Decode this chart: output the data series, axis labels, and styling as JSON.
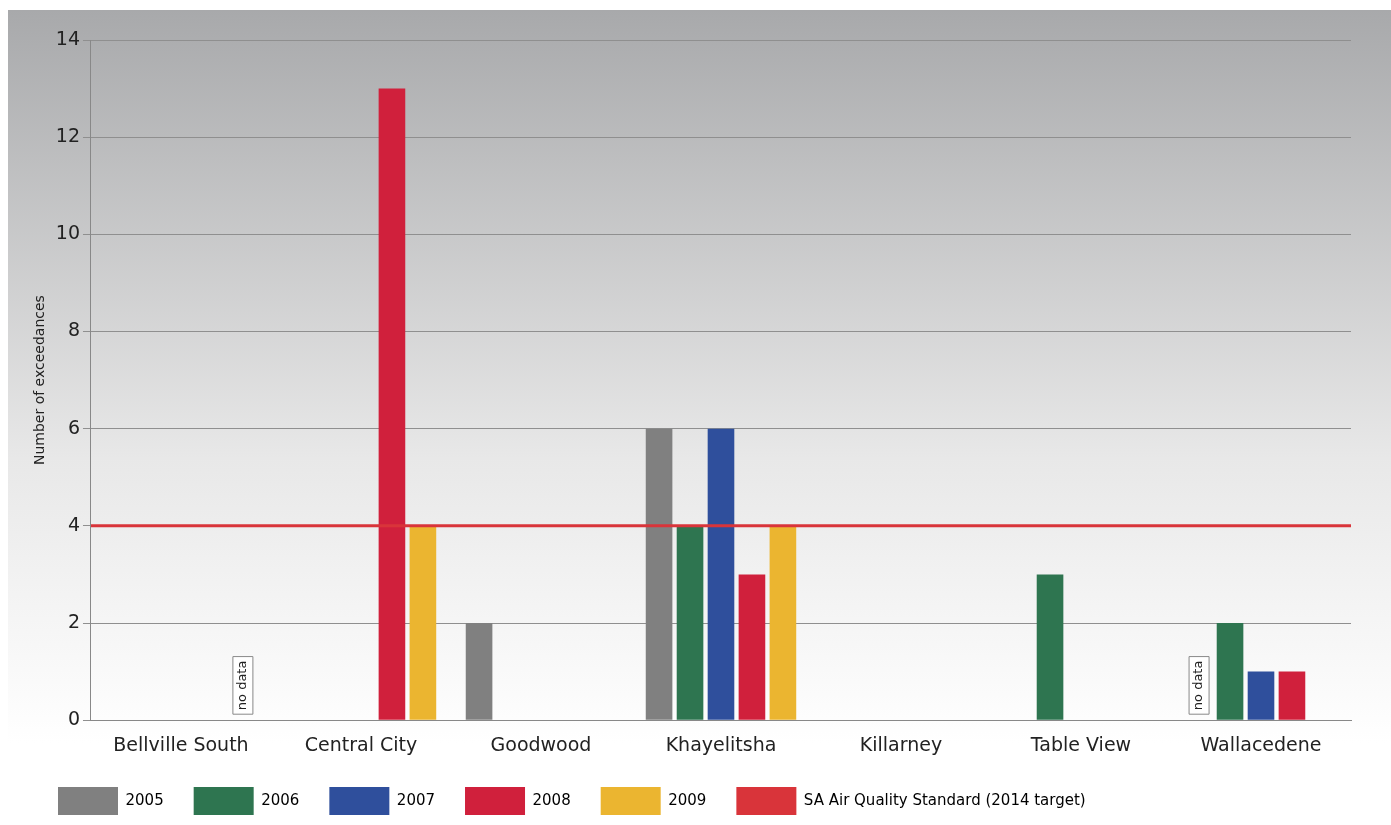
{
  "chart_data": {
    "type": "bar",
    "ylabel": "Number of exceedances",
    "categories": [
      "Bellville South",
      "Central City",
      "Goodwood",
      "Khayelitsha",
      "Killarney",
      "Table View",
      "Wallacedene"
    ],
    "series": [
      {
        "name": "2005",
        "color": "#808080",
        "values": [
          0,
          0,
          2,
          6,
          0,
          0,
          null
        ]
      },
      {
        "name": "2006",
        "color": "#2e7550",
        "values": [
          0,
          0,
          0,
          4,
          0,
          3,
          2
        ]
      },
      {
        "name": "2007",
        "color": "#2f4f9c",
        "values": [
          0,
          0,
          0,
          6,
          0,
          0,
          1
        ]
      },
      {
        "name": "2008",
        "color": "#d0203c",
        "values": [
          0,
          13,
          0,
          3,
          0,
          0,
          1
        ]
      },
      {
        "name": "2009",
        "color": "#ebb530",
        "values": [
          null,
          4,
          0,
          4,
          0,
          0,
          0
        ]
      }
    ],
    "ylim": [
      0,
      14
    ],
    "yticks": [
      0,
      2,
      4,
      6,
      8,
      10,
      12,
      14
    ],
    "grid": "y",
    "legend": "bottom",
    "ref_lines": [
      {
        "axis": "y",
        "value": 4,
        "label": "SA Air Quality Standard (2014 target)",
        "color": "#d9343a"
      }
    ],
    "annotations": [
      "no data",
      "no data"
    ]
  }
}
